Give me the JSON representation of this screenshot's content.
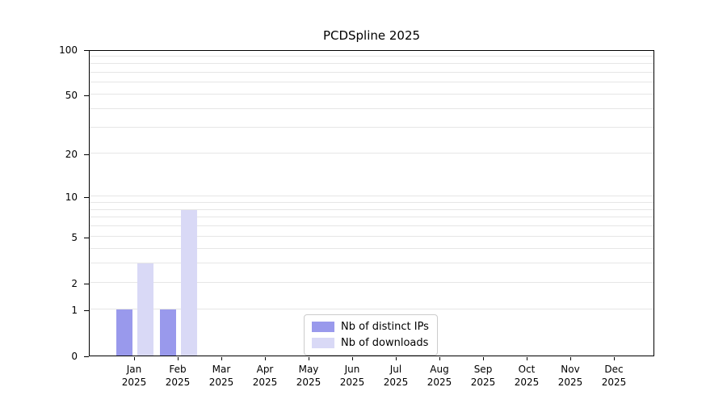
{
  "chart_data": {
    "type": "bar",
    "title": "PCDSpline 2025",
    "categories": [
      "Jan",
      "Feb",
      "Mar",
      "Apr",
      "May",
      "Jun",
      "Jul",
      "Aug",
      "Sep",
      "Oct",
      "Nov",
      "Dec"
    ],
    "year": "2025",
    "series": [
      {
        "name": "Nb of distinct IPs",
        "color": "#9999ec",
        "values": [
          1,
          1,
          0,
          0,
          0,
          0,
          0,
          0,
          0,
          0,
          0,
          0
        ]
      },
      {
        "name": "Nb of downloads",
        "color": "#d9d9f6",
        "values": [
          3,
          8,
          0,
          0,
          0,
          0,
          0,
          0,
          0,
          0,
          0,
          0
        ]
      }
    ],
    "y_ticks": [
      0,
      1,
      2,
      5,
      10,
      20,
      50,
      100
    ],
    "grid_values": [
      1,
      2,
      3,
      4,
      5,
      6,
      7,
      8,
      9,
      10,
      20,
      30,
      40,
      50,
      60,
      70,
      80,
      90,
      100
    ],
    "y_scale": "log1p",
    "ylim": [
      0,
      100
    ],
    "grid": true,
    "legend_position": "bottom-center"
  }
}
